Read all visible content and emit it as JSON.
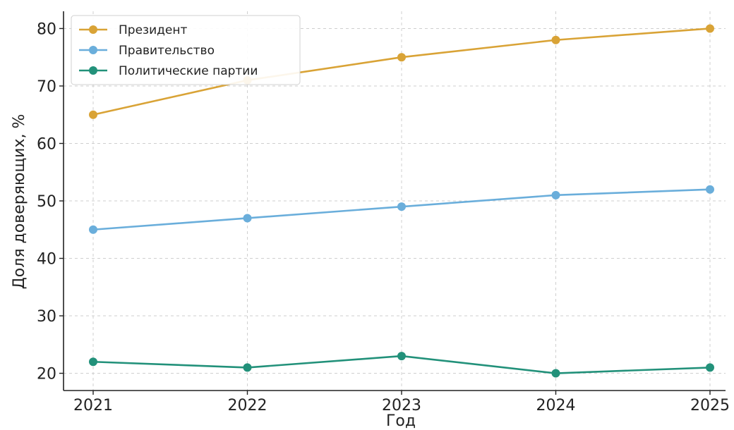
{
  "chart_data": {
    "type": "line",
    "title": "",
    "xlabel": "Год",
    "ylabel": "Доля доверяющих, %",
    "x": [
      2021,
      2022,
      2023,
      2024,
      2025
    ],
    "x_tick_labels": [
      "2021",
      "2022",
      "2023",
      "2024",
      "2025"
    ],
    "ylim": [
      17,
      83
    ],
    "y_ticks": [
      20,
      30,
      40,
      50,
      60,
      70,
      80
    ],
    "y_tick_labels": [
      "20",
      "30",
      "40",
      "50",
      "60",
      "70",
      "80"
    ],
    "grid": true,
    "legend_position": "top-left",
    "series": [
      {
        "name": "Президент",
        "values": [
          65,
          71,
          75,
          78,
          80
        ],
        "color": "#D9A336"
      },
      {
        "name": "Правительство",
        "values": [
          45,
          47,
          49,
          51,
          52
        ],
        "color": "#6AAEDB"
      },
      {
        "name": "Политические партии",
        "values": [
          22,
          21,
          23,
          20,
          21
        ],
        "color": "#22917A"
      }
    ]
  }
}
